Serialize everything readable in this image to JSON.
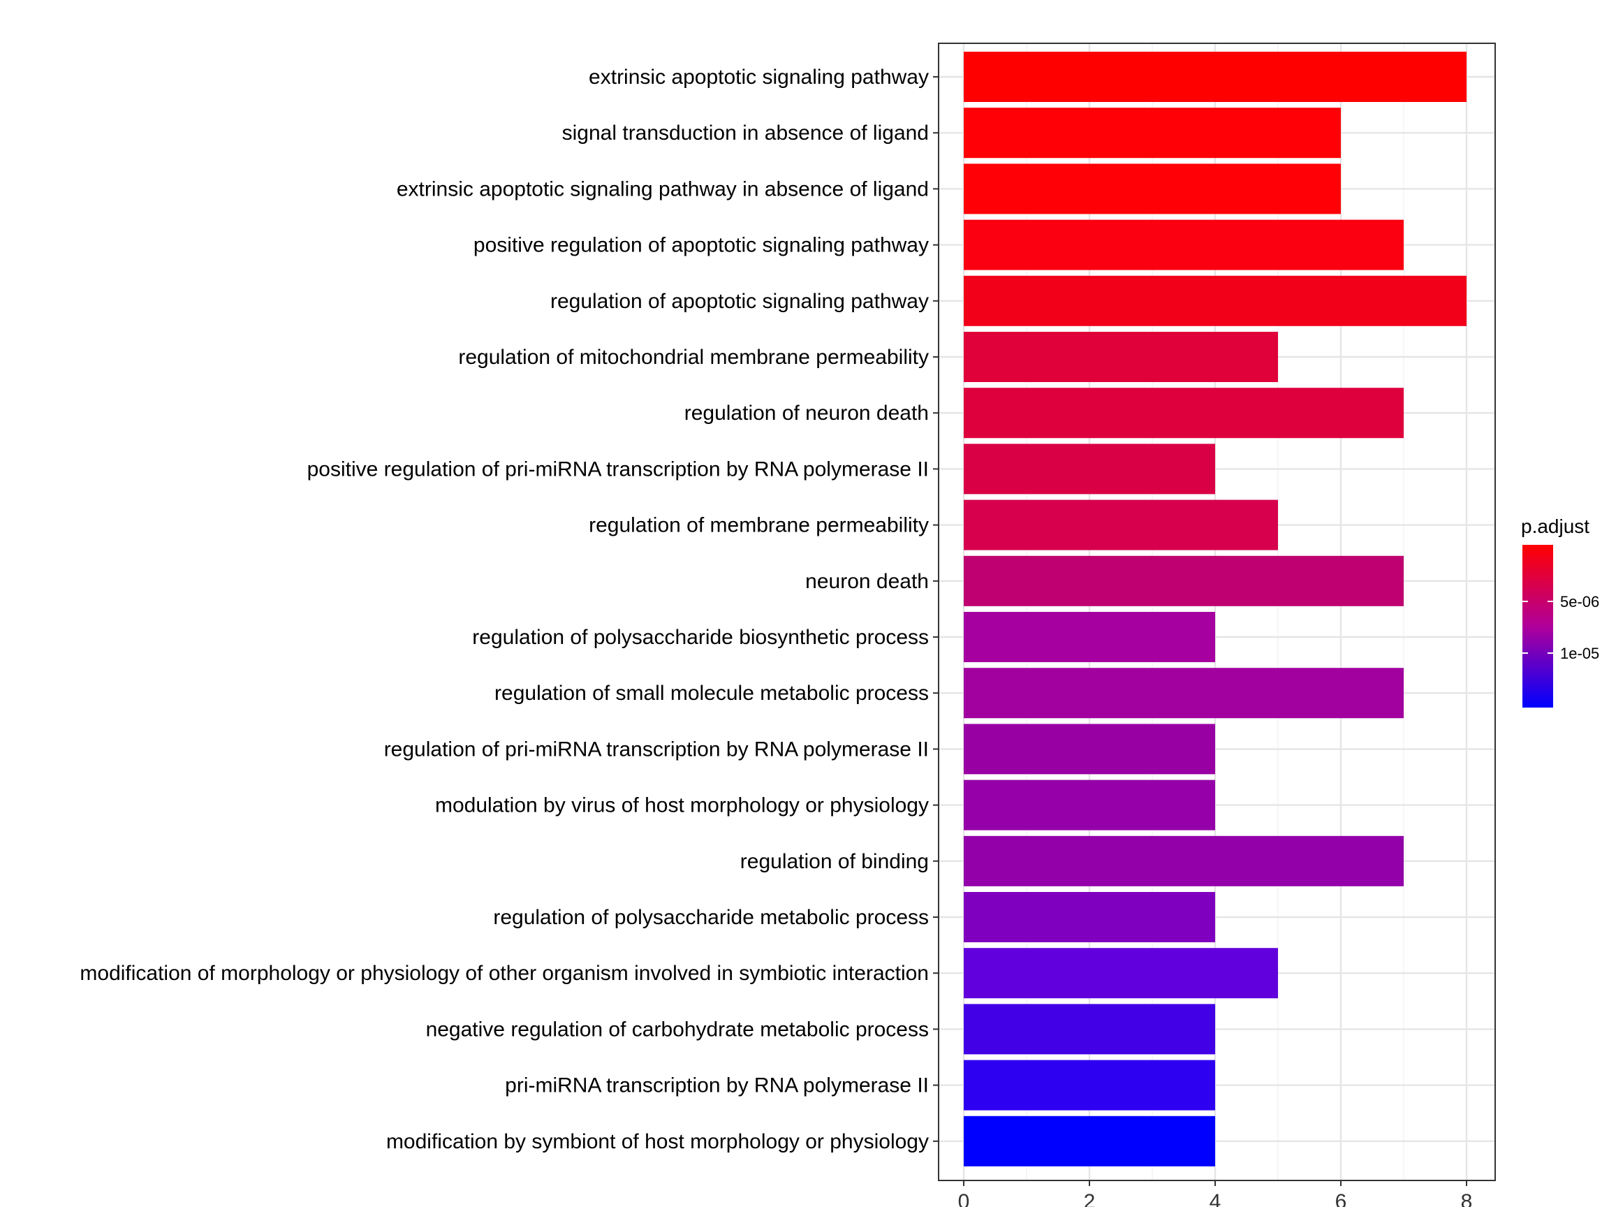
{
  "chart_data": {
    "type": "bar",
    "orientation": "horizontal",
    "title": "",
    "xlabel": "",
    "ylabel": "",
    "xlim": [
      0,
      8.4
    ],
    "xticks": [
      "0",
      "2",
      "4",
      "6",
      "8"
    ],
    "grid": true,
    "categories": [
      "extrinsic apoptotic signaling pathway",
      "signal transduction in absence of ligand",
      "extrinsic apoptotic signaling pathway in absence of ligand",
      "positive regulation of apoptotic signaling pathway",
      "regulation of apoptotic signaling pathway",
      "regulation of mitochondrial membrane permeability",
      "regulation of neuron death",
      "positive regulation of pri-miRNA transcription by RNA polymerase II",
      "regulation of membrane permeability",
      "neuron death",
      "regulation of polysaccharide biosynthetic process",
      "regulation of small molecule metabolic process",
      "regulation of pri-miRNA transcription by RNA polymerase II",
      "modulation by virus of host morphology or physiology",
      "regulation of binding",
      "regulation of polysaccharide metabolic process",
      "modification of morphology or physiology of other organism involved in symbiotic interaction",
      "negative regulation of carbohydrate metabolic process",
      "pri-miRNA transcription by RNA polymerase II",
      "modification by symbiont of host morphology or physiology"
    ],
    "values": [
      8,
      6,
      6,
      7,
      8,
      5,
      7,
      4,
      5,
      7,
      4,
      7,
      4,
      4,
      7,
      4,
      5,
      4,
      4,
      4
    ],
    "colors": [
      "#FF0000",
      "#FE0005",
      "#FE0006",
      "#FB0010",
      "#F2001A",
      "#E0003A",
      "#DD003C",
      "#DA0046",
      "#D6004C",
      "#BF0070",
      "#A600A0",
      "#A2009F",
      "#9900A4",
      "#9500A8",
      "#9300AA",
      "#8000C0",
      "#6100DC",
      "#4200E6",
      "#2E00F2",
      "#0000FF"
    ],
    "legend": {
      "title": "p.adjust",
      "position": "right",
      "ticks": [
        "5e-06",
        "1e-05"
      ],
      "gradient_top": "#FF0000",
      "gradient_bottom": "#0000FF"
    }
  }
}
